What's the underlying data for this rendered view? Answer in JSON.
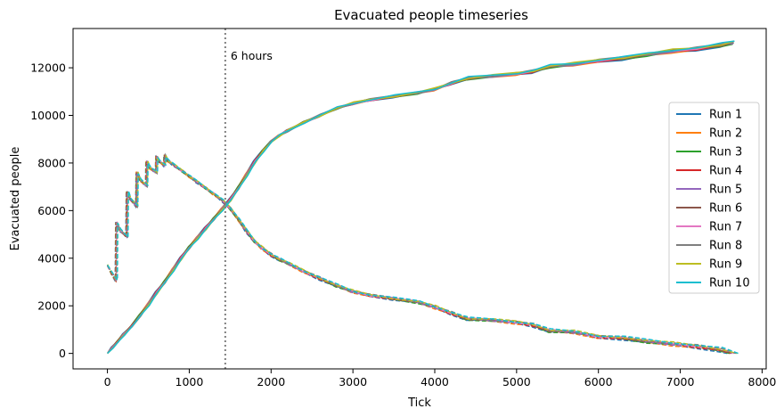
{
  "chart_data": {
    "type": "line",
    "title": "Evacuated people timeseries",
    "xlabel": "Tick",
    "ylabel": "Evacuated people",
    "xlim": [
      -420,
      8050
    ],
    "ylim": [
      -650,
      13650
    ],
    "xticks": [
      0,
      1000,
      2000,
      3000,
      4000,
      5000,
      6000,
      7000,
      8000
    ],
    "yticks": [
      0,
      2000,
      4000,
      6000,
      8000,
      10000,
      12000
    ],
    "grid": false,
    "legend_position": "center-right",
    "vline": {
      "x": 1440,
      "style": "dotted",
      "color": "#7f7f7f",
      "label": "6 hours"
    },
    "evacuated_base": [
      [
        0,
        0
      ],
      [
        60,
        250
      ],
      [
        130,
        500
      ],
      [
        200,
        800
      ],
      [
        300,
        1150
      ],
      [
        400,
        1600
      ],
      [
        500,
        2050
      ],
      [
        600,
        2550
      ],
      [
        700,
        3000
      ],
      [
        800,
        3500
      ],
      [
        900,
        4000
      ],
      [
        1000,
        4450
      ],
      [
        1100,
        4850
      ],
      [
        1200,
        5250
      ],
      [
        1300,
        5650
      ],
      [
        1400,
        6050
      ],
      [
        1500,
        6450
      ],
      [
        1600,
        6950
      ],
      [
        1700,
        7500
      ],
      [
        1800,
        8050
      ],
      [
        1900,
        8500
      ],
      [
        2000,
        8900
      ],
      [
        2100,
        9150
      ],
      [
        2200,
        9350
      ],
      [
        2400,
        9700
      ],
      [
        2600,
        10000
      ],
      [
        2800,
        10300
      ],
      [
        3000,
        10500
      ],
      [
        3200,
        10650
      ],
      [
        3500,
        10800
      ],
      [
        3800,
        10950
      ],
      [
        4000,
        11100
      ],
      [
        4200,
        11350
      ],
      [
        4400,
        11550
      ],
      [
        4700,
        11650
      ],
      [
        5000,
        11750
      ],
      [
        5200,
        11850
      ],
      [
        5400,
        12050
      ],
      [
        5700,
        12150
      ],
      [
        6000,
        12300
      ],
      [
        6300,
        12400
      ],
      [
        6600,
        12550
      ],
      [
        6900,
        12700
      ],
      [
        7200,
        12800
      ],
      [
        7500,
        12950
      ],
      [
        7650,
        13050
      ]
    ],
    "remaining_base": [
      [
        0,
        3700
      ],
      [
        60,
        3350
      ],
      [
        110,
        3050
      ],
      [
        115,
        5500
      ],
      [
        150,
        5200
      ],
      [
        240,
        4900
      ],
      [
        245,
        6800
      ],
      [
        280,
        6500
      ],
      [
        360,
        6200
      ],
      [
        365,
        7600
      ],
      [
        400,
        7300
      ],
      [
        480,
        7050
      ],
      [
        485,
        8050
      ],
      [
        520,
        7800
      ],
      [
        600,
        7600
      ],
      [
        605,
        8250
      ],
      [
        640,
        8050
      ],
      [
        700,
        7900
      ],
      [
        705,
        8300
      ],
      [
        740,
        8100
      ],
      [
        800,
        7950
      ],
      [
        900,
        7700
      ],
      [
        1000,
        7450
      ],
      [
        1100,
        7200
      ],
      [
        1200,
        6950
      ],
      [
        1300,
        6700
      ],
      [
        1400,
        6450
      ],
      [
        1500,
        6100
      ],
      [
        1600,
        5650
      ],
      [
        1700,
        5150
      ],
      [
        1800,
        4700
      ],
      [
        1900,
        4400
      ],
      [
        2000,
        4150
      ],
      [
        2100,
        3950
      ],
      [
        2200,
        3800
      ],
      [
        2400,
        3450
      ],
      [
        2600,
        3150
      ],
      [
        2800,
        2850
      ],
      [
        3000,
        2600
      ],
      [
        3200,
        2450
      ],
      [
        3500,
        2300
      ],
      [
        3800,
        2150
      ],
      [
        4000,
        1950
      ],
      [
        4200,
        1700
      ],
      [
        4400,
        1450
      ],
      [
        4700,
        1400
      ],
      [
        5000,
        1300
      ],
      [
        5200,
        1200
      ],
      [
        5400,
        950
      ],
      [
        5700,
        900
      ],
      [
        6000,
        700
      ],
      [
        6300,
        650
      ],
      [
        6600,
        500
      ],
      [
        6900,
        400
      ],
      [
        7200,
        300
      ],
      [
        7500,
        150
      ],
      [
        7650,
        0
      ]
    ],
    "series": [
      {
        "name": "Run 1",
        "color": "#1f77b4"
      },
      {
        "name": "Run 2",
        "color": "#ff7f0e"
      },
      {
        "name": "Run 3",
        "color": "#2ca02c"
      },
      {
        "name": "Run 4",
        "color": "#d62728"
      },
      {
        "name": "Run 5",
        "color": "#9467bd"
      },
      {
        "name": "Run 6",
        "color": "#8c564b"
      },
      {
        "name": "Run 7",
        "color": "#e377c2"
      },
      {
        "name": "Run 8",
        "color": "#7f7f7f"
      },
      {
        "name": "Run 9",
        "color": "#bcbd22"
      },
      {
        "name": "Run 10",
        "color": "#17becf"
      }
    ]
  }
}
